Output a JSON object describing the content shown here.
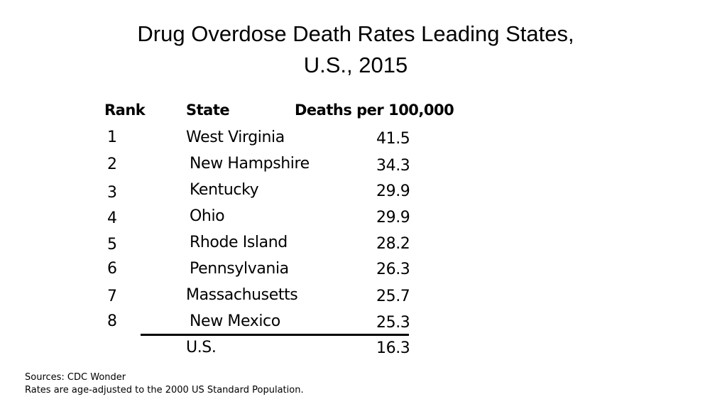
{
  "title": {
    "line1": "Drug Overdose Death Rates Leading States,",
    "line2": "U.S., 2015"
  },
  "table": {
    "headers": {
      "rank": "Rank",
      "state": "State",
      "rate": "Deaths per 100,000"
    },
    "rows": [
      {
        "rank": "1",
        "state": "West Virginia",
        "rate": "41.5"
      },
      {
        "rank": "2",
        "state": "New Hampshire",
        "rate": "34.3"
      },
      {
        "rank": "3",
        "state": "Kentucky",
        "rate": "29.9"
      },
      {
        "rank": "4",
        "state": "Ohio",
        "rate": "29.9"
      },
      {
        "rank": "5",
        "state": "Rhode Island",
        "rate": "28.2"
      },
      {
        "rank": "6",
        "state": "Pennsylvania",
        "rate": "26.3"
      },
      {
        "rank": "7",
        "state": "Massachusetts",
        "rate": "25.7"
      },
      {
        "rank": "8",
        "state": "New Mexico",
        "rate": "25.3"
      }
    ],
    "total": {
      "state": "U.S.",
      "rate": "16.3"
    }
  },
  "footnotes": {
    "sources": "Sources: CDC Wonder",
    "note": "Rates are age-adjusted to the 2000 US Standard Population."
  }
}
